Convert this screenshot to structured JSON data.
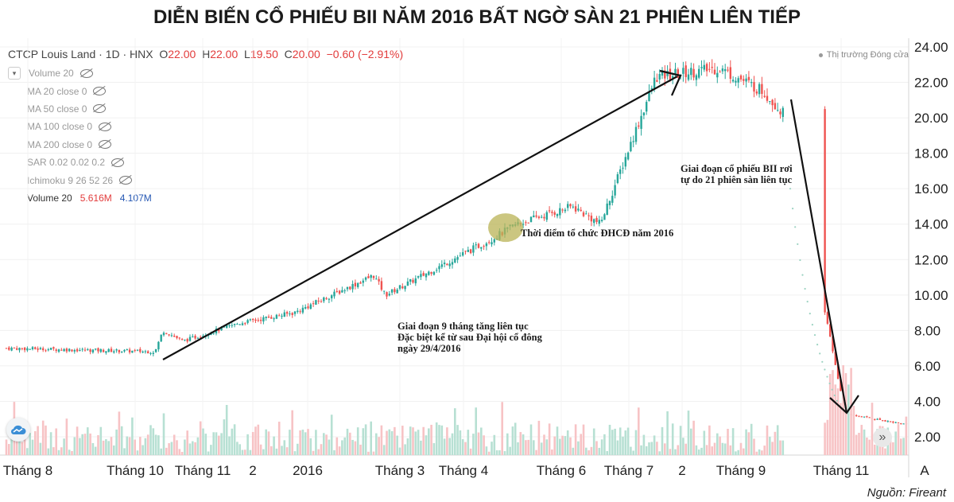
{
  "header": {
    "title": "DIỄN BIẾN CỔ PHIẾU BII NĂM 2016 BẤT NGỜ SÀN 21 PHIÊN LIÊN TIẾP"
  },
  "legend": {
    "symbol": "CTCP Louis Land · 1D · HNX",
    "o_label": "O",
    "o_value": "22.00",
    "h_label": "H",
    "h_value": "22.00",
    "l_label": "L",
    "l_value": "19.50",
    "c_label": "C",
    "c_value": "20.00",
    "change": "−0.60 (−2.91%)",
    "indicators": [
      {
        "label": "Volume 20"
      },
      {
        "label": "MA 20 close 0"
      },
      {
        "label": "MA 50 close 0"
      },
      {
        "label": "MA 100 close 0"
      },
      {
        "label": "MA 200 close 0"
      },
      {
        "label": "SAR 0.02 0.02 0.2"
      },
      {
        "label": "Ichimoku 9 26 52 26"
      }
    ],
    "volume_label": "Volume 20",
    "volume_value": "5.616M",
    "volume_ma": "4.107M"
  },
  "status": "Thị trường Đóng cửa",
  "annotations": {
    "agm": "Thời điểm tổ chức ĐHCĐ năm 2016",
    "rise": [
      "Giai đoạn 9 tháng tăng liên tục",
      "Đặc biệt kể từ sau Đại hội cổ đông",
      "ngày 29/4/2016"
    ],
    "fall": [
      "Giai đoạn cổ phiếu BII rơi",
      "tự do 21 phiên sàn liên tục"
    ]
  },
  "source": "Nguồn: Fireant",
  "axis_corner": "A",
  "colors": {
    "up": "#26a69a",
    "down": "#ef5350",
    "vol_up": "#b7e0d3",
    "vol_down": "#f7c3c5",
    "highlight": "#b9b355",
    "arrow": "#111111"
  },
  "icons": {
    "logo": "cloud-logo-icon",
    "scroll": "double-chevron-right-icon",
    "eye": "eye-off-icon"
  },
  "chart_data": {
    "type": "candlestick",
    "title": "DIỄN BIẾN CỔ PHIẾU BII NĂM 2016 BẤT NGỜ SÀN 21 PHIÊN LIÊN TIẾP",
    "x_ticks": [
      "Tháng 8",
      "Tháng 10",
      "Tháng 11",
      "2",
      "2016",
      "Tháng 3",
      "Tháng 4",
      "Tháng 6",
      "Tháng 7",
      "2",
      "Tháng 9",
      "Tháng 11"
    ],
    "y_ticks": [
      "2.00",
      "4.00",
      "6.00",
      "8.00",
      "10.00",
      "12.00",
      "14.00",
      "16.00",
      "18.00",
      "20.00",
      "22.00",
      "24.00"
    ],
    "ylim": [
      1.5,
      24.5
    ],
    "grid": true,
    "close_path": [
      [
        "Tháng 8",
        7.0
      ],
      [
        "Tháng 10",
        6.8
      ],
      [
        "Tháng 10",
        8.0
      ],
      [
        "Tháng 11",
        7.4
      ],
      [
        "2",
        8.4
      ],
      [
        "2016",
        9.0
      ],
      [
        "Tháng 3",
        11.1
      ],
      [
        "Tháng 3",
        10.0
      ],
      [
        "Tháng 4",
        13.2
      ],
      [
        "Tháng 4",
        14.0
      ],
      [
        "Tháng 6",
        15.0
      ],
      [
        "Tháng 7",
        14.0
      ],
      [
        "Tháng 7",
        22.3
      ],
      [
        "2",
        22.6
      ],
      [
        "Tháng 9",
        22.8
      ],
      [
        "Tháng 9",
        21.5
      ],
      [
        "Tháng 9",
        20.0
      ],
      [
        "Tháng 11",
        3.3
      ],
      [
        "Tháng 11",
        2.7
      ]
    ],
    "last_bar": {
      "open": 22.0,
      "high": 22.0,
      "low": 19.5,
      "close": 20.0,
      "change": -0.6,
      "change_pct": -2.91
    },
    "volume": {
      "last": "5.616M",
      "ma20": "4.107M"
    },
    "events": [
      {
        "label": "Thời điểm tổ chức ĐHCĐ năm 2016",
        "date": "29/4/2016",
        "price": 13.8
      }
    ]
  }
}
